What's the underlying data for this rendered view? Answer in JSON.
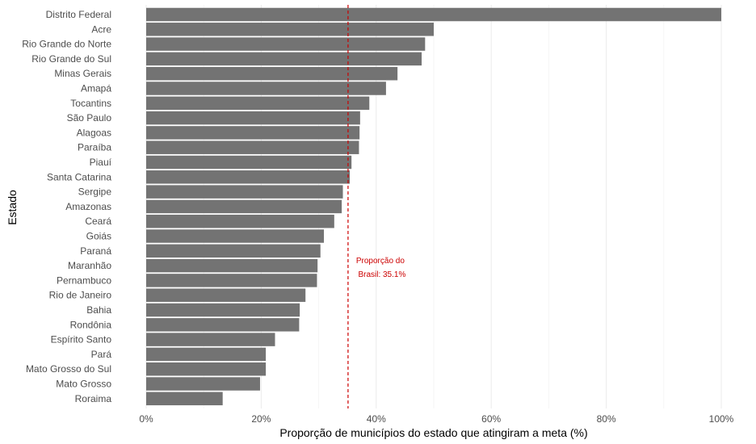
{
  "chart_data": {
    "type": "bar",
    "orientation": "horizontal",
    "title": "",
    "xlabel": "Proporção de municípios do estado que atingiram a meta (%)",
    "ylabel": "Estado",
    "xlim": [
      0,
      100
    ],
    "x_ticks": [
      0,
      20,
      40,
      60,
      80,
      100
    ],
    "x_tick_labels": [
      "0%",
      "20%",
      "40%",
      "60%",
      "80%",
      "100%"
    ],
    "grid": "vertical",
    "bar_color": "#737373",
    "categories": [
      "Distrito Federal",
      "Acre",
      "Rio Grande do Norte",
      "Rio Grande do Sul",
      "Minas Gerais",
      "Amapá",
      "Tocantins",
      "São Paulo",
      "Alagoas",
      "Paraíba",
      "Piauí",
      "Santa Catarina",
      "Sergipe",
      "Amazonas",
      "Ceará",
      "Goiás",
      "Paraná",
      "Maranhão",
      "Pernambuco",
      "Rio de Janeiro",
      "Bahia",
      "Rondônia",
      "Espírito Santo",
      "Pará",
      "Mato Grosso do Sul",
      "Mato Grosso",
      "Roraima"
    ],
    "values": [
      100,
      50.0,
      48.5,
      47.9,
      43.7,
      41.7,
      38.8,
      37.2,
      37.1,
      37.0,
      35.7,
      35.4,
      34.2,
      34.0,
      32.7,
      30.9,
      30.3,
      29.8,
      29.7,
      27.7,
      26.7,
      26.6,
      22.4,
      20.8,
      20.8,
      19.8,
      13.3
    ],
    "reference_line": {
      "value": 35.1,
      "label_line1": "Proporção do",
      "label_line2": "Brasil: 35.1%",
      "color": "#cc0000"
    }
  }
}
